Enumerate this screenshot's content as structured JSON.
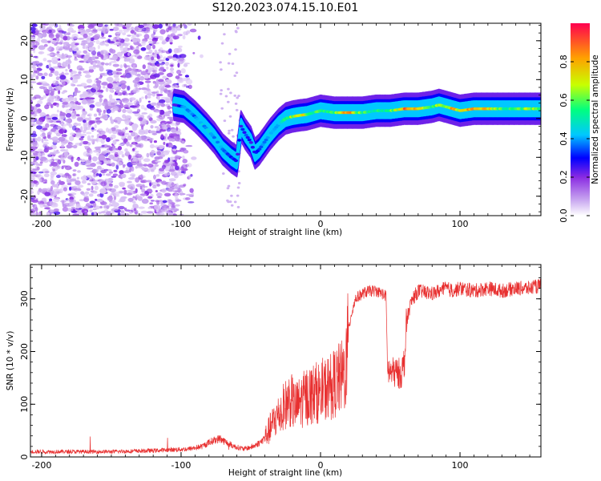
{
  "figure": {
    "title": "S120.2023.074.15.10.E01"
  },
  "chart_data": [
    {
      "type": "heatmap",
      "title": "",
      "xlabel": "Height of straight line (km)",
      "ylabel": "Frequency (Hz)",
      "xlim": [
        -208,
        158
      ],
      "ylim": [
        -25,
        24.5
      ],
      "xticks": [
        -200,
        -100,
        0,
        100
      ],
      "yticks": [
        -20,
        -10,
        0,
        10,
        20
      ],
      "colorbar": {
        "label": "Normalized spectral amplitude",
        "range": [
          0,
          1
        ],
        "ticks": [
          "0.0",
          "0.2",
          "0.4",
          "0.6",
          "0.8"
        ],
        "colors": [
          "#ffffff",
          "#c9a8f0",
          "#8a2be2",
          "#0000ff",
          "#00c8ff",
          "#00ff80",
          "#c8ff00",
          "#ffa000",
          "#ff0050"
        ]
      },
      "ridge": {
        "description_free": true,
        "x": [
          -105,
          -98,
          -90,
          -82,
          -76,
          -70,
          -64,
          -60,
          -57,
          -54,
          -50,
          -47,
          -44,
          -40,
          -36,
          -30,
          -25,
          -20,
          -15,
          -10,
          -5,
          0,
          10,
          20,
          30,
          40,
          50,
          60,
          70,
          80,
          85,
          90,
          95,
          100,
          110,
          120,
          130,
          140,
          150,
          158
        ],
        "y": [
          3.5,
          3.0,
          0.5,
          -2.5,
          -5.0,
          -8.0,
          -10.0,
          -11.0,
          -2.0,
          -4.0,
          -6.0,
          -9.0,
          -8.0,
          -6.0,
          -4.0,
          -1.5,
          0.0,
          0.5,
          0.8,
          1.0,
          1.5,
          2.0,
          1.5,
          1.5,
          1.5,
          2.0,
          2.0,
          2.5,
          2.5,
          3.0,
          3.5,
          3.0,
          2.5,
          2.0,
          2.5,
          2.5,
          2.5,
          2.5,
          2.5,
          2.5
        ],
        "amplitude": [
          0.25,
          0.4,
          0.4,
          0.45,
          0.45,
          0.4,
          0.35,
          0.3,
          0.3,
          0.35,
          0.3,
          0.3,
          0.35,
          0.4,
          0.45,
          0.4,
          0.6,
          0.7,
          0.85,
          0.7,
          0.6,
          0.6,
          0.6,
          0.9,
          0.6,
          0.55,
          0.6,
          0.9,
          0.8,
          0.6,
          0.7,
          0.6,
          0.9,
          0.7,
          0.9,
          0.8,
          0.6,
          0.6,
          0.7,
          0.6
        ]
      },
      "noise_region_x": [
        -208,
        -85
      ]
    },
    {
      "type": "line",
      "title": "",
      "xlabel": "Height of straight line (km)",
      "ylabel": "SNR (10 * v/v)",
      "xlim": [
        -208,
        158
      ],
      "ylim": [
        0,
        365
      ],
      "xticks": [
        -200,
        -100,
        0,
        100
      ],
      "yticks": [
        0,
        100,
        200,
        300
      ],
      "color": "#e83030",
      "series": [
        {
          "x": [
            -208,
            -180,
            -150,
            -120,
            -95,
            -85,
            -78,
            -72,
            -68,
            -62,
            -55,
            -48,
            -42,
            -38,
            -34,
            -30,
            -26,
            -22,
            -18,
            -14,
            -10,
            -5,
            0,
            5,
            10,
            15,
            18,
            20,
            22,
            25,
            30,
            35,
            40,
            44,
            47,
            48,
            50,
            55,
            58,
            60,
            62,
            64,
            66,
            70,
            80,
            90,
            95,
            100,
            110,
            120,
            130,
            140,
            150,
            158
          ],
          "y": [
            10,
            10,
            10,
            12,
            15,
            20,
            30,
            35,
            28,
            20,
            15,
            20,
            30,
            45,
            65,
            80,
            95,
            110,
            95,
            105,
            115,
            120,
            125,
            130,
            140,
            150,
            165,
            240,
            270,
            300,
            310,
            315,
            315,
            310,
            305,
            165,
            160,
            160,
            158,
            180,
            260,
            285,
            300,
            315,
            310,
            320,
            315,
            320,
            315,
            320,
            315,
            320,
            320,
            325
          ]
        }
      ]
    }
  ]
}
